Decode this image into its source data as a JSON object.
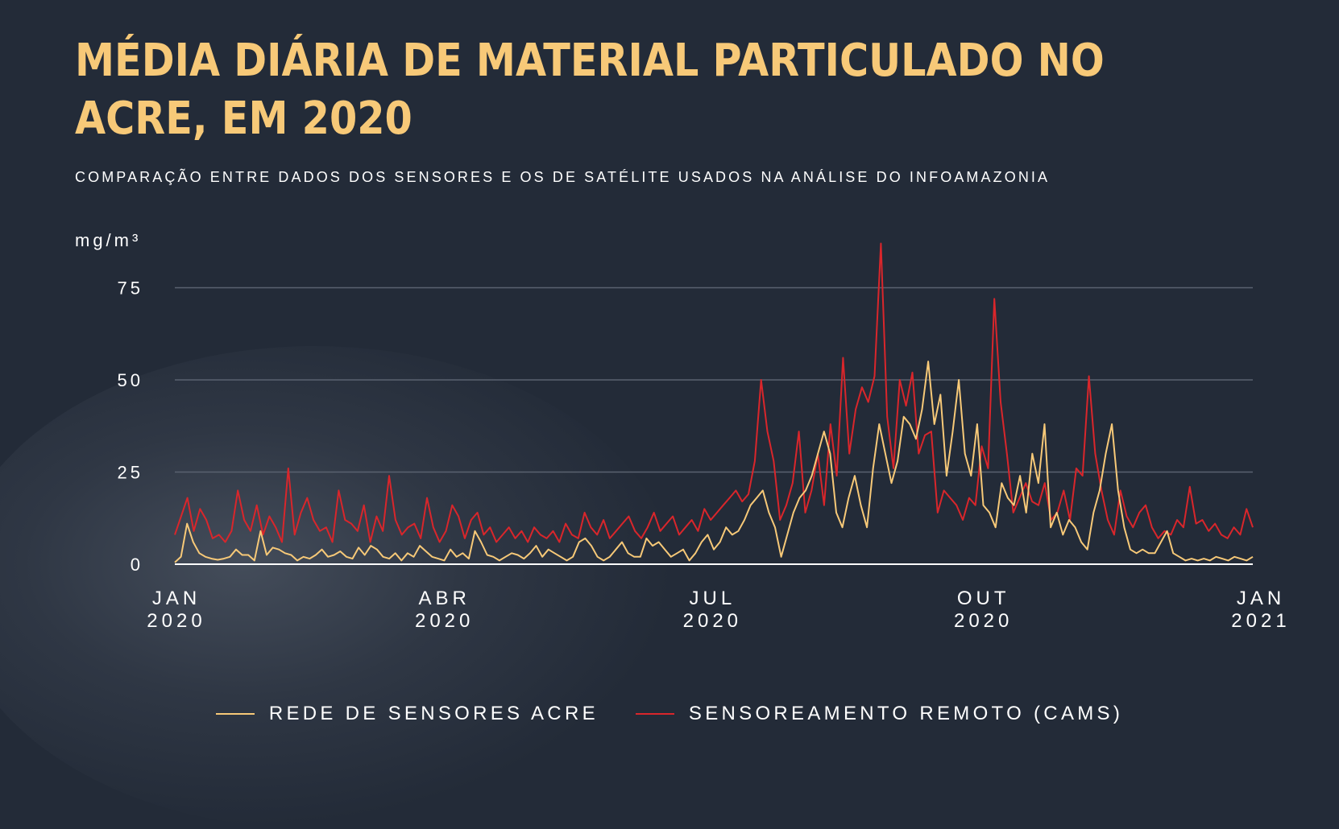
{
  "title": "MÉDIA DIÁRIA DE MATERIAL PARTICULADO NO ACRE, EM 2020",
  "subtitle": "COMPARAÇÃO ENTRE DADOS DOS SENSORES E OS DE SATÉLITE USADOS NA ANÁLISE DO INFOAMAZONIA",
  "colors": {
    "background": "#232b38",
    "title": "#f7c978",
    "sensors": "#f7c978",
    "cams": "#d9262b",
    "grid": "#5a6270",
    "text": "#ffffff"
  },
  "chart_data": {
    "type": "line",
    "title": "MÉDIA DIÁRIA DE MATERIAL PARTICULADO NO ACRE, EM 2020",
    "ylabel": "mg/m³",
    "xlabel": "",
    "ylim": [
      0,
      75
    ],
    "yticks": [
      "0",
      "25",
      "50",
      "75"
    ],
    "ytick_values": [
      0,
      25,
      50,
      75
    ],
    "grid": true,
    "x_domain_days": [
      0,
      366
    ],
    "x_step_days": 3,
    "xticks": [
      {
        "day": 0,
        "month": "JAN",
        "year": "2020"
      },
      {
        "day": 91,
        "month": "ABR",
        "year": "2020"
      },
      {
        "day": 182,
        "month": "JUL",
        "year": "2020"
      },
      {
        "day": 274,
        "month": "OUT",
        "year": "2020"
      },
      {
        "day": 366,
        "month": "JAN",
        "year": "2021"
      }
    ],
    "legend_position": "bottom",
    "series": [
      {
        "name": "REDE DE SENSORES ACRE",
        "color": "#f7c978",
        "values": [
          0.5,
          2,
          11,
          6,
          3,
          2,
          1.5,
          1.2,
          1.5,
          2,
          4,
          2.5,
          2.5,
          1,
          9,
          2.5,
          4.5,
          4,
          3,
          2.5,
          1,
          2,
          1.5,
          2.5,
          4,
          2,
          2.5,
          3.5,
          2,
          1.5,
          4.5,
          2.5,
          5,
          4,
          2,
          1.5,
          3,
          1,
          3,
          2,
          5,
          3.5,
          2,
          1.5,
          1,
          4,
          2,
          3,
          1.5,
          9,
          6,
          2.5,
          2,
          1,
          2,
          3,
          2.5,
          1.5,
          3,
          5,
          2,
          4,
          3,
          2,
          1,
          2,
          6,
          7,
          5,
          2,
          1,
          2,
          4,
          6,
          3,
          2,
          2,
          7,
          5,
          6,
          4,
          2,
          3,
          4,
          1,
          3,
          6,
          8,
          4,
          6,
          10,
          8,
          9,
          12,
          16,
          18,
          20,
          14,
          10,
          2,
          8,
          14,
          18,
          20,
          24,
          30,
          36,
          30,
          14,
          10,
          18,
          24,
          16,
          10,
          26,
          38,
          30,
          22,
          28,
          40,
          38,
          34,
          42,
          55,
          38,
          46,
          24,
          36,
          50,
          30,
          24,
          38,
          16,
          14,
          10,
          22,
          18,
          16,
          24,
          14,
          30,
          22,
          38,
          10,
          14,
          8,
          12,
          10,
          6,
          4,
          14,
          20,
          30,
          38,
          20,
          10,
          4,
          3,
          4,
          3,
          3,
          6,
          9,
          3,
          2,
          1,
          1.5,
          1,
          1.5,
          1,
          2,
          1.5,
          1,
          2,
          1.5,
          1,
          2
        ]
      },
      {
        "name": "SENSOREAMENTO REMOTO (CAMS)",
        "color": "#d9262b",
        "values": [
          8,
          13,
          18,
          9,
          15,
          12,
          7,
          8,
          6,
          9,
          20,
          12,
          9,
          16,
          8,
          13,
          10,
          6,
          26,
          8,
          14,
          18,
          12,
          9,
          10,
          6,
          20,
          12,
          11,
          9,
          16,
          6,
          13,
          9,
          24,
          12,
          8,
          10,
          11,
          7,
          18,
          10,
          6,
          9,
          16,
          13,
          7,
          12,
          14,
          8,
          10,
          6,
          8,
          10,
          7,
          9,
          6,
          10,
          8,
          7,
          9,
          6,
          11,
          8,
          7,
          14,
          10,
          8,
          12,
          7,
          9,
          11,
          13,
          9,
          7,
          10,
          14,
          9,
          11,
          13,
          8,
          10,
          12,
          9,
          15,
          12,
          14,
          16,
          18,
          20,
          17,
          19,
          28,
          50,
          36,
          28,
          12,
          16,
          22,
          36,
          14,
          20,
          30,
          16,
          38,
          24,
          56,
          30,
          42,
          48,
          44,
          51,
          87,
          40,
          26,
          50,
          43,
          52,
          30,
          35,
          36,
          14,
          20,
          18,
          16,
          12,
          18,
          16,
          32,
          26,
          72,
          44,
          30,
          14,
          18,
          22,
          17,
          16,
          22,
          12,
          14,
          20,
          12,
          26,
          24,
          51,
          30,
          20,
          12,
          8,
          20,
          13,
          10,
          14,
          16,
          10,
          7,
          9,
          8,
          12,
          10,
          21,
          11,
          12,
          9,
          11,
          8,
          7,
          10,
          8,
          15,
          10
        ]
      }
    ]
  }
}
